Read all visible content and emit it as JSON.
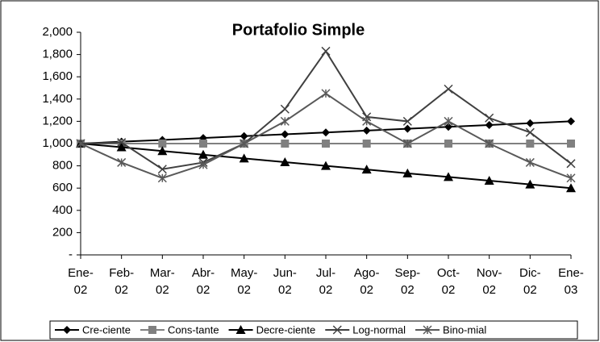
{
  "chart_data": {
    "type": "line",
    "title": "Portafolio Simple",
    "categories": [
      "Ene-02",
      "Feb-02",
      "Mar-02",
      "Abr-02",
      "May-02",
      "Jun-02",
      "Jul-02",
      "Ago-02",
      "Sep-02",
      "Oct-02",
      "Nov-02",
      "Dic-02",
      "Ene-03"
    ],
    "series": [
      {
        "name": "Cre-ciente",
        "color": "#000000",
        "marker": "diamond",
        "values": [
          1000,
          1017,
          1033,
          1050,
          1067,
          1083,
          1100,
          1117,
          1133,
          1150,
          1167,
          1183,
          1200
        ]
      },
      {
        "name": "Cons-tante",
        "color": "#808080",
        "marker": "square",
        "values": [
          1000,
          1000,
          1000,
          1000,
          1000,
          1000,
          1000,
          1000,
          1000,
          1000,
          1000,
          1000,
          1000
        ]
      },
      {
        "name": "Decre-ciente",
        "color": "#000000",
        "marker": "triangle",
        "values": [
          1000,
          967,
          933,
          900,
          867,
          833,
          800,
          767,
          733,
          700,
          667,
          633,
          600
        ]
      },
      {
        "name": "Log-normal",
        "color": "#404040",
        "marker": "x",
        "values": [
          1000,
          1010,
          770,
          830,
          1000,
          1310,
          1830,
          1240,
          1200,
          1490,
          1230,
          1100,
          820
        ]
      },
      {
        "name": "Bino-mial",
        "color": "#595959",
        "marker": "star",
        "values": [
          1000,
          830,
          690,
          810,
          1000,
          1200,
          1450,
          1200,
          1000,
          1200,
          1000,
          830,
          690
        ]
      }
    ],
    "ylim": [
      0,
      2000
    ],
    "yticks": [
      {
        "value": 0,
        "label": "-"
      },
      200,
      400,
      600,
      800,
      {
        "value": 1000,
        "label": "1,000"
      },
      {
        "value": 1200,
        "label": "1,200"
      },
      {
        "value": 1400,
        "label": "1,400"
      },
      {
        "value": 1600,
        "label": "1,600"
      },
      {
        "value": 1800,
        "label": "1,800"
      },
      {
        "value": 2000,
        "label": "2,000"
      }
    ],
    "legend": "bottom"
  }
}
